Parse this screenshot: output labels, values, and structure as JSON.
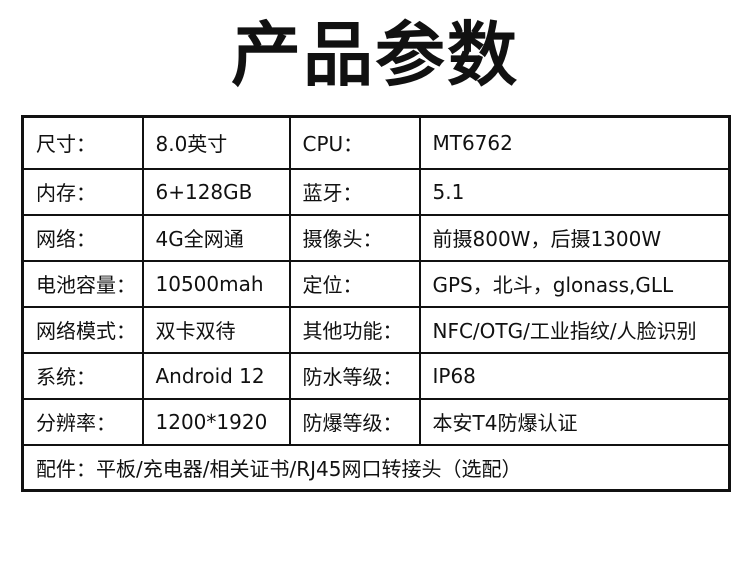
{
  "header": {
    "title": "产品参数"
  },
  "table": {
    "rows": [
      [
        "尺寸：",
        "8.0英寸",
        "CPU：",
        "MT6762"
      ],
      [
        "内存：",
        "6+128GB",
        "蓝牙：",
        "5.1"
      ],
      [
        "网络：",
        "4G全网通",
        "摄像头：",
        "前摄800W，后摄1300W"
      ],
      [
        "电池容量：",
        "10500mah",
        "定位：",
        "GPS，北斗，glonass,GLL"
      ],
      [
        "网络模式：",
        "双卡双待",
        "其他功能：",
        "NFC/OTG/工业指纹/人脸识别"
      ],
      [
        "系统：",
        "Android 12",
        "防水等级：",
        "IP68"
      ],
      [
        "分辨率：",
        "1200*1920",
        "防爆等级：",
        "本安T4防爆认证"
      ]
    ],
    "footer": "配件：平板/充电器/相关证书/RJ45网口转接头（选配）"
  }
}
